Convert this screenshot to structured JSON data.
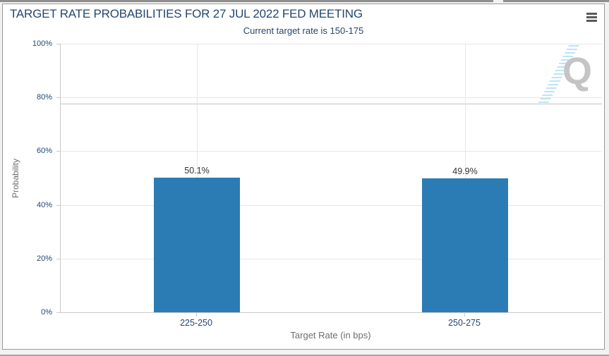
{
  "header": {
    "menu_icon": "hamburger-icon"
  },
  "chart_data": {
    "type": "bar",
    "title": "TARGET RATE PROBABILITIES FOR 27 JUL 2022 FED MEETING",
    "subtitle": "Current target rate is 150-175",
    "categories": [
      "225-250",
      "250-275"
    ],
    "values": [
      50.1,
      49.9
    ],
    "value_labels": [
      "50.1%",
      "49.9%"
    ],
    "xlabel": "Target Rate (in bps)",
    "ylabel": "Probability",
    "ylim": [
      0,
      100
    ],
    "ytick_labels": [
      "100%",
      "80%",
      "60%",
      "40%",
      "20%",
      "0%"
    ],
    "grid": true,
    "legend": false,
    "bar_color": "#2b7cb4",
    "watermark": "Q"
  },
  "colors": {
    "title_text": "#24476e",
    "axis_tick_text": "#24476e",
    "muted_text": "#6e6e6e",
    "bar": "#2b7cb4",
    "gridline": "#e6e6e6",
    "card_border": "#999999",
    "value_label_text": "#333333",
    "watermark_gray": "#c4c4c4",
    "watermark_blue": "#b5e2f5"
  }
}
